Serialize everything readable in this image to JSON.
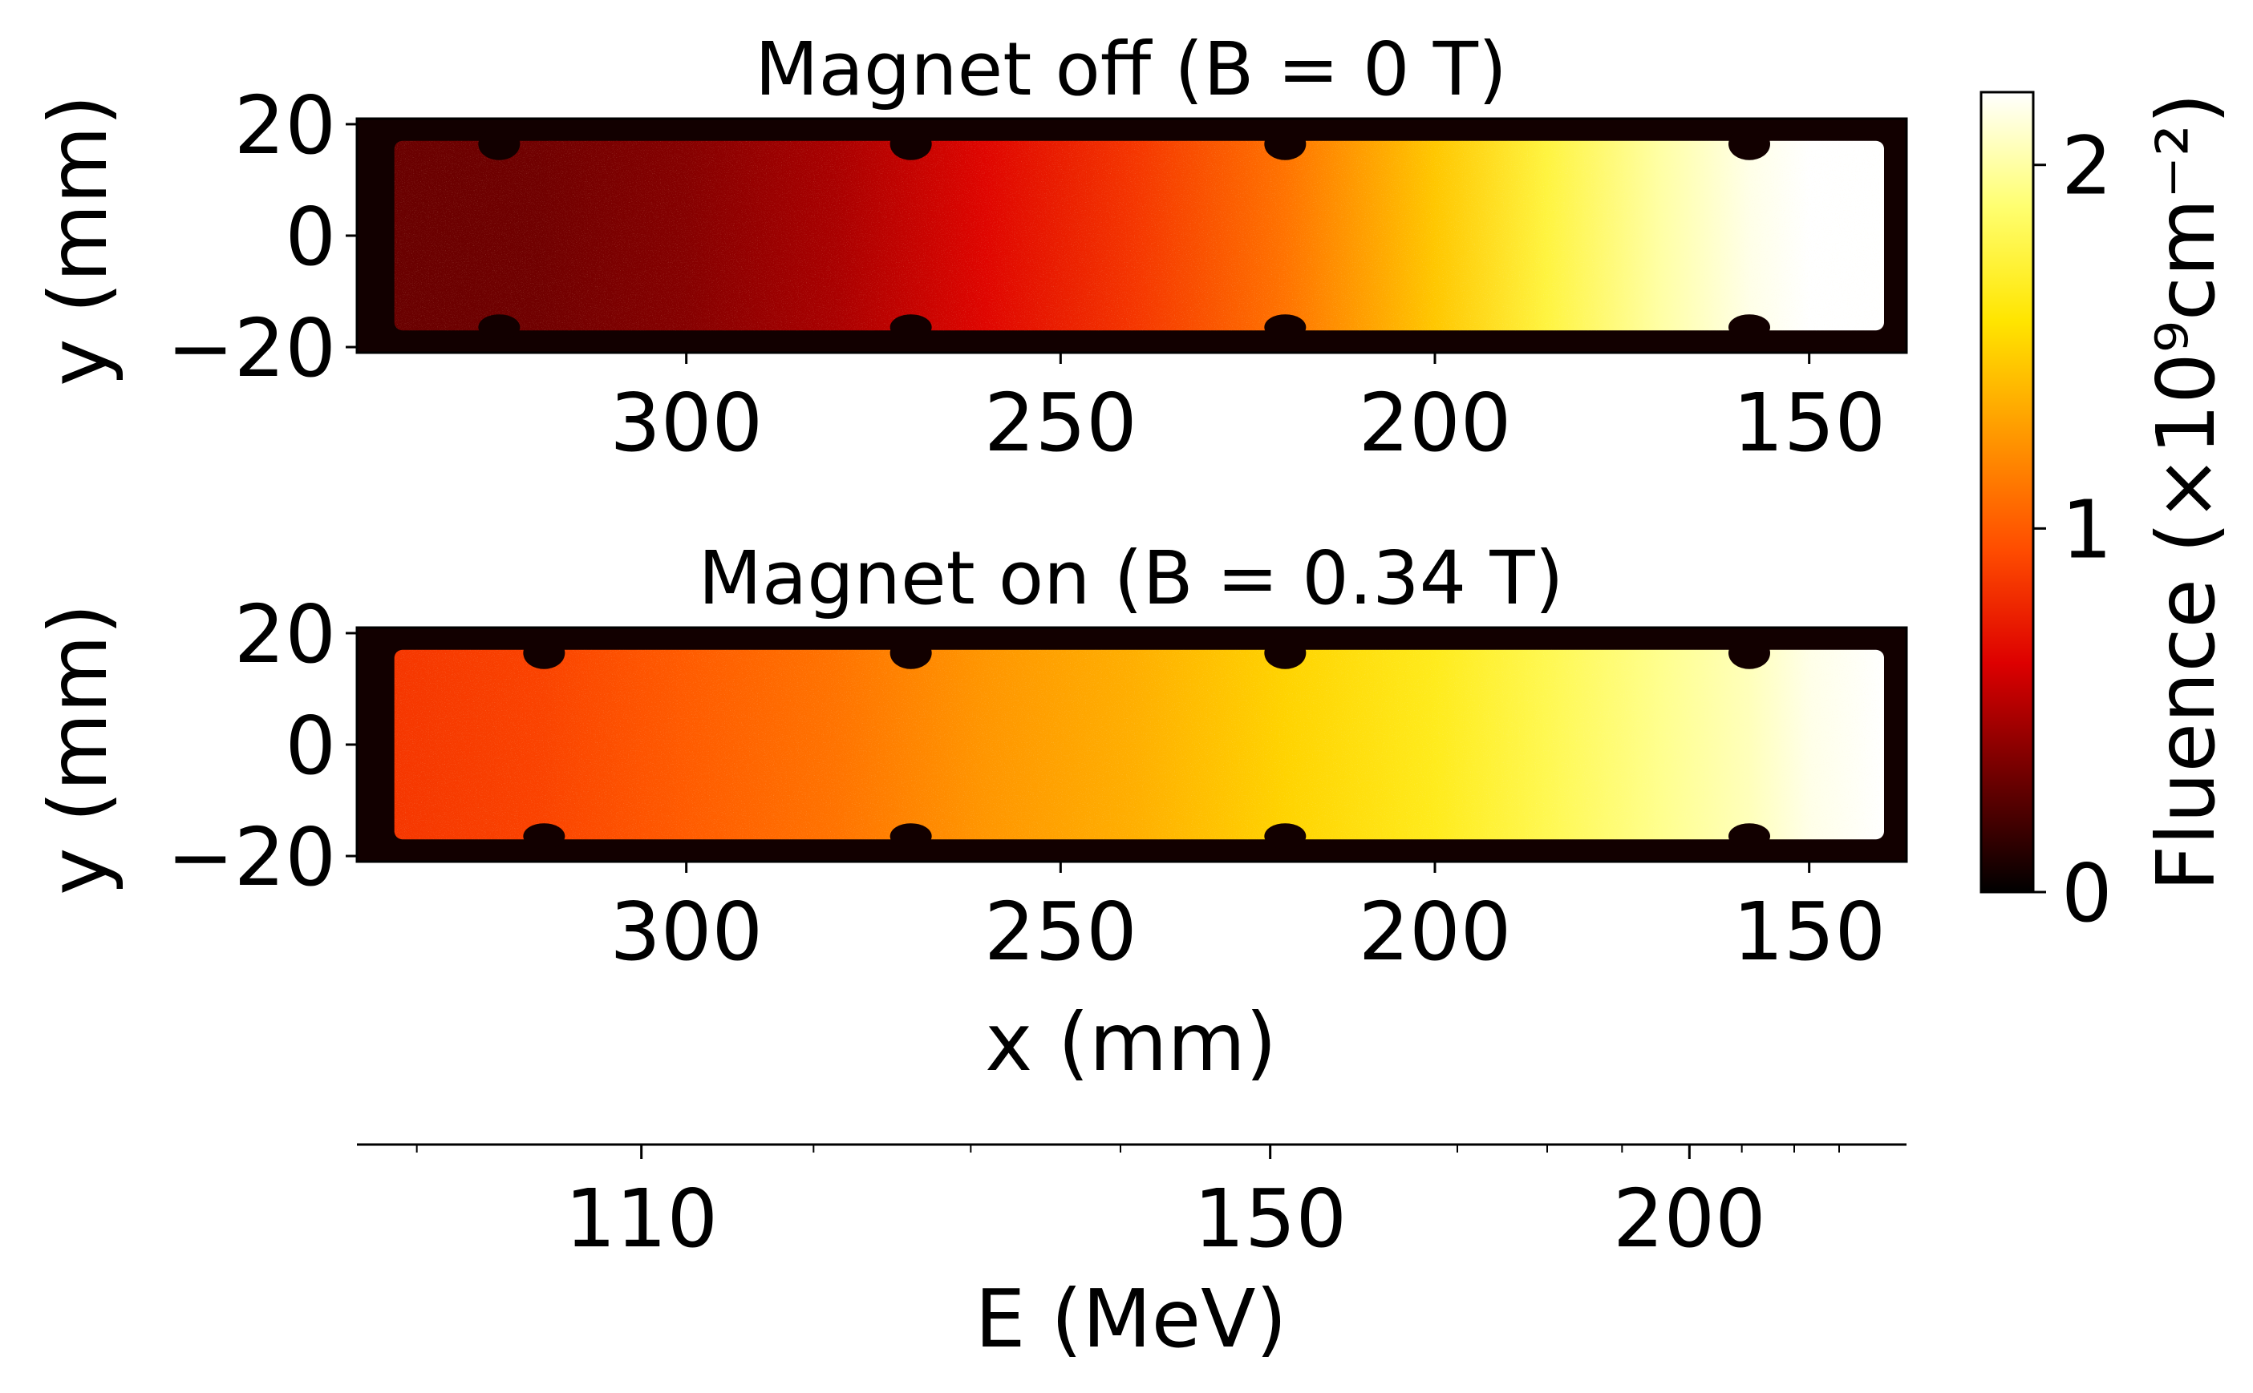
{
  "chart_data": [
    {
      "type": "heatmap",
      "title": "Magnet off (B = 0 T)",
      "xlabel": "",
      "ylabel": "y (mm)",
      "x_ticks": [
        300,
        250,
        200,
        150
      ],
      "y_ticks": [
        20,
        0,
        -20
      ],
      "y_tick_labels": [
        "20",
        "0",
        "−20"
      ],
      "xlim": [
        344,
        137
      ],
      "ylim": [
        -21,
        21
      ],
      "plate": {
        "x_range": [
          339,
          140
        ],
        "y_range": [
          -17,
          17
        ]
      },
      "notch_x": [
        325,
        270,
        220,
        158
      ],
      "fluence_profile": {
        "x": [
          339,
          320,
          300,
          280,
          260,
          240,
          220,
          200,
          185,
          170,
          158,
          150,
          140
        ],
        "value": [
          0.3,
          0.32,
          0.38,
          0.48,
          0.65,
          0.85,
          1.1,
          1.45,
          1.75,
          2.0,
          2.15,
          2.2,
          2.2
        ]
      }
    },
    {
      "type": "heatmap",
      "title": "Magnet on (B = 0.34 T)",
      "xlabel": "x (mm)",
      "ylabel": "y (mm)",
      "x_ticks": [
        300,
        250,
        200,
        150
      ],
      "y_ticks": [
        20,
        0,
        -20
      ],
      "y_tick_labels": [
        "20",
        "0",
        "−20"
      ],
      "xlim": [
        344,
        137
      ],
      "ylim": [
        -21,
        21
      ],
      "plate": {
        "x_range": [
          339,
          140
        ],
        "y_range": [
          -17,
          17
        ]
      },
      "notch_x": [
        319,
        270,
        220,
        158
      ],
      "fluence_profile": {
        "x": [
          339,
          320,
          300,
          280,
          260,
          240,
          220,
          200,
          185,
          170,
          158,
          150,
          140
        ],
        "value": [
          0.85,
          0.9,
          1.0,
          1.1,
          1.25,
          1.35,
          1.5,
          1.65,
          1.8,
          1.95,
          2.05,
          2.15,
          2.2
        ]
      }
    }
  ],
  "energy_axis": {
    "label": "E (MeV)",
    "major_ticks": [
      {
        "value": 110,
        "x_mm": 306
      },
      {
        "value": 150,
        "x_mm": 222
      },
      {
        "value": 200,
        "x_mm": 166
      }
    ],
    "minor_tick_x_mm": [
      336,
      283,
      262,
      242,
      197,
      185,
      175,
      159,
      152,
      146
    ]
  },
  "colorbar": {
    "label": "Fluence (×10⁹cm⁻²)",
    "ticks": [
      0,
      1,
      2
    ],
    "range": [
      0,
      2.2
    ],
    "colormap": "hot",
    "stops": [
      "#000000",
      "#6e0000",
      "#dd0000",
      "#ff4d00",
      "#ff9800",
      "#ffe500",
      "#ffff70",
      "#ffffff"
    ]
  },
  "colors": {
    "background": "#ffffff",
    "axes": "#000000",
    "outside_plate": "#120000"
  }
}
